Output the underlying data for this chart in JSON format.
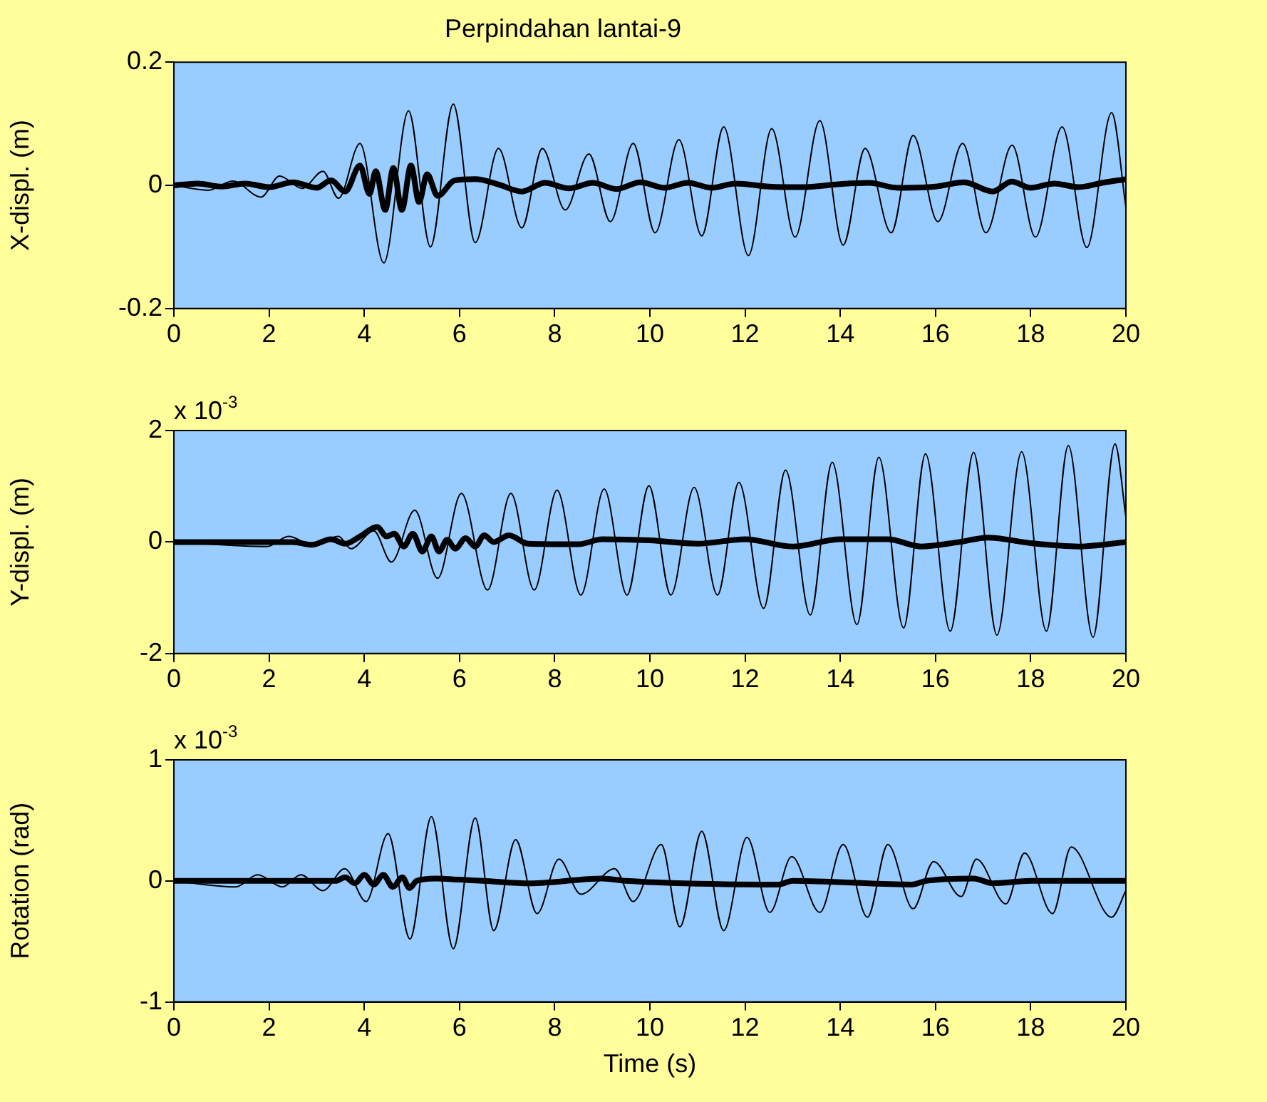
{
  "chart_data": [
    {
      "type": "line",
      "title": "Perpindahan lantai-9",
      "ylabel": "X-displ. (m)",
      "xlim": [
        0,
        20
      ],
      "ylim": [
        -0.2,
        0.2
      ],
      "xticks": [
        0,
        2,
        4,
        6,
        8,
        10,
        12,
        14,
        16,
        18,
        20
      ],
      "yticks": [
        -0.2,
        0,
        0.2
      ],
      "grid": false,
      "series": [
        {
          "type": "line",
          "color": "#000000",
          "x": [
            0,
            0.72,
            1.24,
            1.83,
            2.22,
            2.7,
            3.13,
            3.46,
            3.91,
            4.41,
            4.93,
            5.39,
            5.87,
            6.33,
            6.82,
            7.31,
            7.74,
            8.22,
            8.72,
            9.17,
            9.65,
            10.11,
            10.61,
            11.09,
            11.55,
            12.07,
            12.56,
            13.05,
            13.57,
            14.06,
            14.52,
            15.07,
            15.53,
            16.05,
            16.57,
            17.06,
            17.61,
            18.1,
            18.66,
            19.18,
            19.7,
            20
          ],
          "values": [
            0,
            -0.008,
            0.007,
            -0.019,
            0.015,
            -0.005,
            0.023,
            -0.021,
            0.068,
            -0.126,
            0.121,
            -0.1,
            0.132,
            -0.093,
            0.06,
            -0.069,
            0.06,
            -0.04,
            0.051,
            -0.059,
            0.068,
            -0.077,
            0.074,
            -0.082,
            0.095,
            -0.114,
            0.092,
            -0.084,
            0.105,
            -0.097,
            0.06,
            -0.077,
            0.081,
            -0.059,
            0.068,
            -0.077,
            0.065,
            -0.084,
            0.095,
            -0.101,
            0.118,
            -0.035
          ]
        },
        {
          "type": "line",
          "color": "#000000",
          "x": [
            0,
            0.5,
            1,
            1.5,
            2,
            2.5,
            3,
            3.3,
            3.6,
            3.91,
            4.11,
            4.24,
            4.44,
            4.61,
            4.79,
            4.98,
            5.15,
            5.32,
            5.54,
            5.9,
            6.33,
            6.8,
            7.31,
            7.8,
            8.3,
            8.8,
            9.3,
            9.8,
            10.3,
            10.8,
            11.3,
            11.8,
            12.5,
            13.2,
            14,
            14.6,
            15.2,
            16,
            16.6,
            17.2,
            17.6,
            18,
            18.5,
            19,
            19.5,
            20
          ],
          "values": [
            0,
            0.003,
            -0.002,
            0.003,
            -0.003,
            0.005,
            -0.004,
            0.008,
            -0.01,
            0.032,
            -0.014,
            0.023,
            -0.04,
            0.028,
            -0.04,
            0.032,
            -0.027,
            0.018,
            -0.017,
            0.008,
            0.01,
            0.002,
            -0.01,
            0.004,
            -0.005,
            0.004,
            -0.006,
            0.005,
            -0.004,
            0.004,
            -0.004,
            0.003,
            -0.002,
            -0.003,
            0.002,
            0.004,
            -0.004,
            -0.002,
            0.005,
            -0.01,
            0.006,
            -0.004,
            0.003,
            -0.003,
            0.004,
            0.01
          ]
        }
      ]
    },
    {
      "type": "line",
      "ylabel": "Y-displ. (m)",
      "annotations": [
        "x 10$^{-3}$"
      ],
      "xlim": [
        0,
        20
      ],
      "ylim": [
        -2,
        2
      ],
      "xticks": [
        0,
        2,
        4,
        6,
        8,
        10,
        12,
        14,
        16,
        18,
        20
      ],
      "yticks": [
        -2,
        0,
        2
      ],
      "grid": false,
      "series": [
        {
          "type": "line",
          "color": "#000000",
          "x": [
            0,
            1.96,
            2.41,
            2.9,
            3.46,
            3.72,
            4.2,
            4.57,
            5.06,
            5.54,
            6.04,
            6.59,
            7.08,
            7.57,
            8.05,
            8.55,
            9.04,
            9.52,
            9.98,
            10.44,
            10.93,
            11.42,
            11.87,
            12.39,
            12.85,
            13.37,
            13.83,
            14.35,
            14.81,
            15.33,
            15.79,
            16.31,
            16.8,
            17.29,
            17.81,
            18.33,
            18.79,
            19.31,
            19.77,
            20
          ],
          "values": [
            0,
            -0.08,
            0.1,
            -0.05,
            0.1,
            -0.12,
            0.2,
            -0.36,
            0.57,
            -0.65,
            0.87,
            -0.86,
            0.87,
            -0.86,
            0.93,
            -0.95,
            0.95,
            -0.95,
            1.01,
            -0.95,
            0.98,
            -0.95,
            1.07,
            -1.19,
            1.29,
            -1.31,
            1.43,
            -1.48,
            1.52,
            -1.54,
            1.58,
            -1.6,
            1.61,
            -1.67,
            1.62,
            -1.6,
            1.73,
            -1.71,
            1.76,
            0.45
          ]
        },
        {
          "type": "line",
          "color": "#000000",
          "x": [
            0,
            2.5,
            2.9,
            3.3,
            3.6,
            3.91,
            4.27,
            4.47,
            4.63,
            4.83,
            5.02,
            5.22,
            5.41,
            5.57,
            5.74,
            5.91,
            6.13,
            6.33,
            6.52,
            6.72,
            7.04,
            7.44,
            8.5,
            9,
            10,
            11,
            12,
            13,
            14,
            15,
            15.7,
            16.5,
            17.1,
            18,
            19,
            20
          ],
          "values": [
            0,
            0,
            -0.05,
            0.05,
            -0.03,
            0.1,
            0.27,
            0.1,
            0.15,
            -0.08,
            0.15,
            -0.17,
            0.1,
            -0.17,
            0.04,
            -0.12,
            0.07,
            -0.08,
            0.12,
            0,
            0.12,
            -0.03,
            -0.04,
            0.05,
            0.03,
            -0.03,
            0.05,
            -0.08,
            0.05,
            0.05,
            -0.08,
            0,
            0.08,
            -0.02,
            -0.08,
            0
          ]
        }
      ]
    },
    {
      "type": "line",
      "ylabel": "Rotation (rad)",
      "xlabel": "Time (s)",
      "annotations": [
        "x 10$^{-3}$"
      ],
      "xlim": [
        0,
        20
      ],
      "ylim": [
        -1,
        1
      ],
      "xticks": [
        0,
        2,
        4,
        6,
        8,
        10,
        12,
        14,
        16,
        18,
        20
      ],
      "yticks": [
        -1,
        0,
        1
      ],
      "grid": false,
      "series": [
        {
          "type": "line",
          "color": "#000000",
          "x": [
            0,
            1.3,
            1.76,
            2.28,
            2.67,
            3.13,
            3.59,
            4.04,
            4.5,
            4.96,
            5.41,
            5.87,
            6.33,
            6.72,
            7.18,
            7.63,
            8.09,
            8.55,
            9.26,
            9.65,
            10.24,
            10.63,
            11.09,
            11.55,
            12.04,
            12.52,
            12.98,
            13.57,
            14.06,
            14.57,
            15,
            15.53,
            15.96,
            16.54,
            16.86,
            17.48,
            17.87,
            18.46,
            18.85,
            19.7,
            20
          ],
          "values": [
            0,
            -0.05,
            0.05,
            -0.05,
            0.05,
            -0.08,
            0.1,
            -0.17,
            0.39,
            -0.48,
            0.53,
            -0.56,
            0.52,
            -0.41,
            0.34,
            -0.27,
            0.18,
            -0.11,
            0.1,
            -0.17,
            0.3,
            -0.38,
            0.41,
            -0.41,
            0.36,
            -0.26,
            0.2,
            -0.26,
            0.3,
            -0.3,
            0.3,
            -0.23,
            0.16,
            -0.13,
            0.18,
            -0.19,
            0.23,
            -0.27,
            0.28,
            -0.3,
            -0.08
          ]
        },
        {
          "type": "line",
          "color": "#000000",
          "x": [
            0,
            3.4,
            3.6,
            3.8,
            4,
            4.2,
            4.4,
            4.6,
            4.8,
            4.95,
            5.1,
            5.5,
            6,
            6.5,
            7.5,
            9,
            9.5,
            12.7,
            13,
            15.5,
            15.8,
            16.8,
            17.2,
            18,
            20
          ],
          "values": [
            0,
            0,
            0.03,
            -0.02,
            0.05,
            -0.03,
            0.05,
            -0.05,
            0.03,
            -0.06,
            0,
            0.02,
            0.01,
            0,
            -0.02,
            0.02,
            0,
            -0.03,
            0,
            -0.03,
            0,
            0.02,
            -0.02,
            0,
            0
          ]
        }
      ]
    }
  ]
}
